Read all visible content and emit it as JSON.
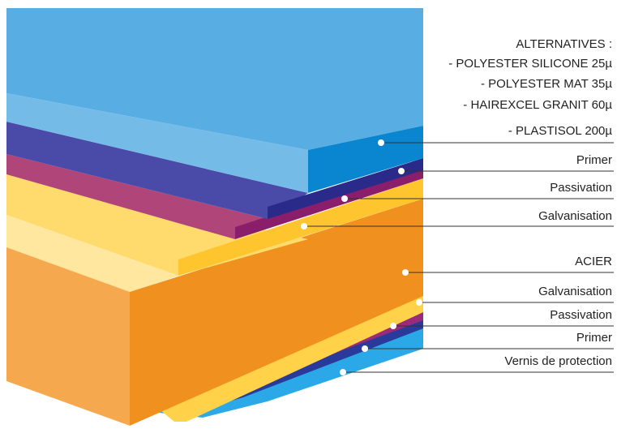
{
  "alternatives": {
    "title": "ALTERNATIVES :",
    "items": [
      "- POLYESTER SILICONE 25µ",
      "- POLYESTER MAT 35µ",
      "- HAIREXCEL GRANIT 60µ",
      "- PLASTISOL 200µ"
    ]
  },
  "layers": [
    {
      "label": "Primer"
    },
    {
      "label": "Passivation"
    },
    {
      "label": "Galvanisation"
    },
    {
      "label": "ACIER"
    },
    {
      "label": "Galvanisation"
    },
    {
      "label": "Passivation"
    },
    {
      "label": "Primer"
    },
    {
      "label": "Vernis de protection"
    }
  ]
}
